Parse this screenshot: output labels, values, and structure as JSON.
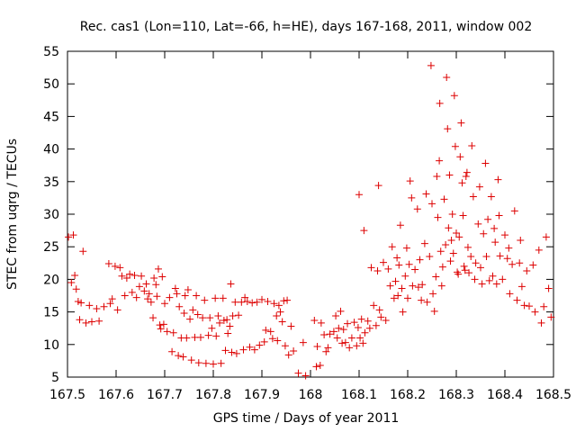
{
  "chart_data": {
    "type": "scatter",
    "title": "Rec. cas1 (Lon=110, Lat=-66, h=HE), days 167-168, 2011, window 002",
    "xlabel": "GPS time / Days of year 2011",
    "ylabel": "STEC from uqrg / TECUs",
    "xlim": [
      167.5,
      168.5
    ],
    "ylim": [
      5,
      55
    ],
    "xticks": [
      "167.5",
      "167.6",
      "167.7",
      "167.8",
      "167.9",
      "168",
      "168.1",
      "168.2",
      "168.3",
      "168.4",
      "168.5"
    ],
    "yticks": [
      "5",
      "10",
      "15",
      "20",
      "25",
      "30",
      "35",
      "40",
      "45",
      "50",
      "55"
    ],
    "grid": false,
    "marker": "+",
    "color": "#dd0000",
    "series": [
      {
        "points": [
          [
            167.502,
            26.5
          ],
          [
            167.508,
            19.5
          ],
          [
            167.512,
            26.8
          ],
          [
            167.515,
            20.6
          ],
          [
            167.518,
            18.5
          ],
          [
            167.522,
            16.6
          ],
          [
            167.525,
            13.8
          ],
          [
            167.528,
            16.4
          ],
          [
            167.532,
            24.3
          ],
          [
            167.538,
            13.3
          ],
          [
            167.545,
            16.0
          ],
          [
            167.55,
            13.5
          ],
          [
            167.56,
            15.5
          ],
          [
            167.565,
            13.6
          ],
          [
            167.575,
            15.8
          ],
          [
            167.585,
            22.4
          ],
          [
            167.588,
            16.3
          ],
          [
            167.592,
            17.0
          ],
          [
            167.598,
            22.0
          ],
          [
            167.603,
            15.3
          ],
          [
            167.608,
            21.8
          ],
          [
            167.612,
            20.5
          ],
          [
            167.618,
            17.5
          ],
          [
            167.622,
            20.2
          ],
          [
            167.628,
            20.8
          ],
          [
            167.633,
            18.0
          ],
          [
            167.638,
            20.6
          ],
          [
            167.642,
            17.2
          ],
          [
            167.648,
            18.9
          ],
          [
            167.652,
            20.5
          ],
          [
            167.658,
            18.2
          ],
          [
            167.662,
            19.3
          ],
          [
            167.665,
            17.0
          ],
          [
            167.668,
            17.8
          ],
          [
            167.672,
            16.5
          ],
          [
            167.676,
            14.1
          ],
          [
            167.678,
            20.2
          ],
          [
            167.682,
            19.2
          ],
          [
            167.684,
            17.4
          ],
          [
            167.687,
            21.6
          ],
          [
            167.69,
            13.0
          ],
          [
            167.692,
            12.4
          ],
          [
            167.695,
            20.4
          ],
          [
            167.698,
            13.1
          ],
          [
            167.7,
            16.3
          ],
          [
            167.705,
            12.0
          ],
          [
            167.71,
            17.2
          ],
          [
            167.715,
            8.9
          ],
          [
            167.718,
            11.8
          ],
          [
            167.722,
            18.6
          ],
          [
            167.725,
            17.8
          ],
          [
            167.728,
            8.3
          ],
          [
            167.73,
            15.8
          ],
          [
            167.734,
            11.0
          ],
          [
            167.738,
            8.1
          ],
          [
            167.74,
            14.8
          ],
          [
            167.742,
            17.5
          ],
          [
            167.745,
            11.0
          ],
          [
            167.748,
            18.4
          ],
          [
            167.752,
            13.9
          ],
          [
            167.755,
            7.6
          ],
          [
            167.758,
            15.3
          ],
          [
            167.762,
            11.1
          ],
          [
            167.765,
            17.5
          ],
          [
            167.768,
            14.6
          ],
          [
            167.77,
            7.2
          ],
          [
            167.774,
            11.1
          ],
          [
            167.778,
            14.1
          ],
          [
            167.782,
            16.8
          ],
          [
            167.785,
            7.1
          ],
          [
            167.79,
            11.4
          ],
          [
            167.793,
            14.1
          ],
          [
            167.797,
            12.5
          ],
          [
            167.8,
            7.0
          ],
          [
            167.804,
            17.1
          ],
          [
            167.806,
            11.3
          ],
          [
            167.81,
            14.4
          ],
          [
            167.813,
            13.3
          ],
          [
            167.816,
            7.1
          ],
          [
            167.82,
            17.1
          ],
          [
            167.822,
            13.7
          ],
          [
            167.825,
            9.1
          ],
          [
            167.828,
            13.8
          ],
          [
            167.83,
            11.7
          ],
          [
            167.834,
            12.8
          ],
          [
            167.836,
            19.3
          ],
          [
            167.838,
            8.8
          ],
          [
            167.84,
            14.4
          ],
          [
            167.845,
            16.5
          ],
          [
            167.848,
            8.6
          ],
          [
            167.852,
            14.5
          ],
          [
            167.858,
            16.5
          ],
          [
            167.862,
            9.2
          ],
          [
            167.865,
            17.2
          ],
          [
            167.87,
            16.6
          ],
          [
            167.875,
            9.6
          ],
          [
            167.88,
            16.4
          ],
          [
            167.885,
            9.2
          ],
          [
            167.89,
            16.5
          ],
          [
            167.895,
            9.9
          ],
          [
            167.9,
            16.9
          ],
          [
            167.905,
            10.4
          ],
          [
            167.908,
            12.2
          ],
          [
            167.912,
            16.6
          ],
          [
            167.918,
            12.0
          ],
          [
            167.922,
            10.9
          ],
          [
            167.925,
            16.3
          ],
          [
            167.93,
            14.4
          ],
          [
            167.932,
            10.6
          ],
          [
            167.935,
            16.0
          ],
          [
            167.938,
            15.0
          ],
          [
            167.942,
            13.5
          ],
          [
            167.945,
            16.7
          ],
          [
            167.948,
            9.8
          ],
          [
            167.952,
            16.8
          ],
          [
            167.955,
            8.4
          ],
          [
            167.96,
            12.8
          ],
          [
            167.965,
            9.0
          ],
          [
            167.975,
            5.6
          ],
          [
            167.985,
            10.3
          ],
          [
            167.99,
            5.2
          ],
          [
            168.008,
            13.7
          ],
          [
            168.012,
            6.6
          ],
          [
            168.014,
            9.7
          ],
          [
            168.02,
            6.8
          ],
          [
            168.022,
            13.3
          ],
          [
            168.028,
            11.5
          ],
          [
            168.032,
            8.9
          ],
          [
            168.036,
            9.5
          ],
          [
            168.04,
            11.6
          ],
          [
            168.048,
            12.0
          ],
          [
            168.052,
            14.4
          ],
          [
            168.055,
            11.0
          ],
          [
            168.058,
            12.5
          ],
          [
            168.062,
            15.1
          ],
          [
            168.065,
            10.2
          ],
          [
            168.068,
            12.3
          ],
          [
            168.072,
            10.3
          ],
          [
            168.076,
            13.2
          ],
          [
            168.08,
            9.5
          ],
          [
            168.085,
            11.0
          ],
          [
            168.09,
            13.4
          ],
          [
            168.095,
            9.8
          ],
          [
            168.098,
            12.6
          ],
          [
            168.1,
            33.0
          ],
          [
            168.102,
            11.0
          ],
          [
            168.105,
            13.9
          ],
          [
            168.108,
            10.2
          ],
          [
            168.11,
            27.5
          ],
          [
            168.112,
            11.8
          ],
          [
            168.118,
            13.6
          ],
          [
            168.122,
            12.5
          ],
          [
            168.125,
            21.8
          ],
          [
            168.13,
            16.0
          ],
          [
            168.135,
            12.9
          ],
          [
            168.138,
            21.3
          ],
          [
            168.14,
            34.4
          ],
          [
            168.142,
            15.3
          ],
          [
            168.145,
            14.2
          ],
          [
            168.15,
            22.6
          ],
          [
            168.155,
            13.7
          ],
          [
            168.16,
            21.6
          ],
          [
            168.164,
            19.0
          ],
          [
            168.168,
            25.0
          ],
          [
            168.172,
            17.1
          ],
          [
            168.175,
            19.7
          ],
          [
            168.178,
            23.3
          ],
          [
            168.18,
            17.5
          ],
          [
            168.182,
            22.2
          ],
          [
            168.185,
            28.3
          ],
          [
            168.188,
            18.6
          ],
          [
            168.19,
            15.0
          ],
          [
            168.195,
            20.5
          ],
          [
            168.198,
            24.8
          ],
          [
            168.2,
            17.1
          ],
          [
            168.203,
            22.3
          ],
          [
            168.205,
            35.1
          ],
          [
            168.208,
            32.5
          ],
          [
            168.21,
            19.0
          ],
          [
            168.215,
            21.5
          ],
          [
            168.22,
            30.8
          ],
          [
            168.222,
            18.8
          ],
          [
            168.225,
            23.0
          ],
          [
            168.228,
            16.8
          ],
          [
            168.23,
            19.2
          ],
          [
            168.235,
            25.5
          ],
          [
            168.238,
            33.1
          ],
          [
            168.24,
            16.5
          ],
          [
            168.245,
            23.5
          ],
          [
            168.248,
            52.8
          ],
          [
            168.25,
            31.6
          ],
          [
            168.252,
            17.8
          ],
          [
            168.255,
            15.1
          ],
          [
            168.258,
            20.4
          ],
          [
            168.26,
            35.8
          ],
          [
            168.262,
            29.5
          ],
          [
            168.265,
            38.2
          ],
          [
            168.266,
            47.0
          ],
          [
            168.268,
            24.3
          ],
          [
            168.27,
            19.0
          ],
          [
            168.272,
            21.9
          ],
          [
            168.275,
            32.3
          ],
          [
            168.278,
            25.3
          ],
          [
            168.28,
            51.0
          ],
          [
            168.282,
            43.1
          ],
          [
            168.284,
            27.9
          ],
          [
            168.286,
            36.0
          ],
          [
            168.288,
            22.8
          ],
          [
            168.29,
            26.0
          ],
          [
            168.292,
            30.0
          ],
          [
            168.294,
            24.0
          ],
          [
            168.296,
            48.2
          ],
          [
            168.298,
            40.4
          ],
          [
            168.3,
            27.1
          ],
          [
            168.302,
            21.1
          ],
          [
            168.304,
            20.8
          ],
          [
            168.306,
            26.5
          ],
          [
            168.308,
            38.8
          ],
          [
            168.31,
            44.0
          ],
          [
            168.312,
            34.8
          ],
          [
            168.314,
            29.8
          ],
          [
            168.316,
            22.0
          ],
          [
            168.318,
            21.4
          ],
          [
            168.32,
            35.8
          ],
          [
            168.322,
            36.4
          ],
          [
            168.324,
            24.9
          ],
          [
            168.326,
            21.0
          ],
          [
            168.33,
            23.5
          ],
          [
            168.332,
            40.5
          ],
          [
            168.335,
            32.7
          ],
          [
            168.338,
            20.0
          ],
          [
            168.34,
            22.5
          ],
          [
            168.345,
            28.5
          ],
          [
            168.348,
            34.2
          ],
          [
            168.35,
            21.8
          ],
          [
            168.353,
            19.3
          ],
          [
            168.356,
            27.0
          ],
          [
            168.36,
            37.8
          ],
          [
            168.362,
            23.5
          ],
          [
            168.365,
            29.2
          ],
          [
            168.368,
            19.8
          ],
          [
            168.372,
            32.7
          ],
          [
            168.375,
            20.5
          ],
          [
            168.378,
            27.8
          ],
          [
            168.38,
            25.7
          ],
          [
            168.383,
            19.3
          ],
          [
            168.386,
            35.3
          ],
          [
            168.388,
            29.8
          ],
          [
            168.39,
            23.6
          ],
          [
            168.395,
            20.0
          ],
          [
            168.4,
            26.8
          ],
          [
            168.405,
            23.2
          ],
          [
            168.408,
            24.8
          ],
          [
            168.41,
            17.8
          ],
          [
            168.415,
            22.3
          ],
          [
            168.42,
            30.5
          ],
          [
            168.425,
            16.8
          ],
          [
            168.43,
            22.5
          ],
          [
            168.432,
            26.0
          ],
          [
            168.435,
            18.9
          ],
          [
            168.44,
            16.0
          ],
          [
            168.445,
            21.3
          ],
          [
            168.45,
            15.9
          ],
          [
            168.458,
            22.2
          ],
          [
            168.462,
            15.0
          ],
          [
            168.47,
            24.5
          ],
          [
            168.475,
            13.3
          ],
          [
            168.48,
            15.8
          ],
          [
            168.485,
            26.5
          ],
          [
            168.49,
            18.6
          ],
          [
            168.495,
            14.2
          ]
        ]
      }
    ]
  }
}
